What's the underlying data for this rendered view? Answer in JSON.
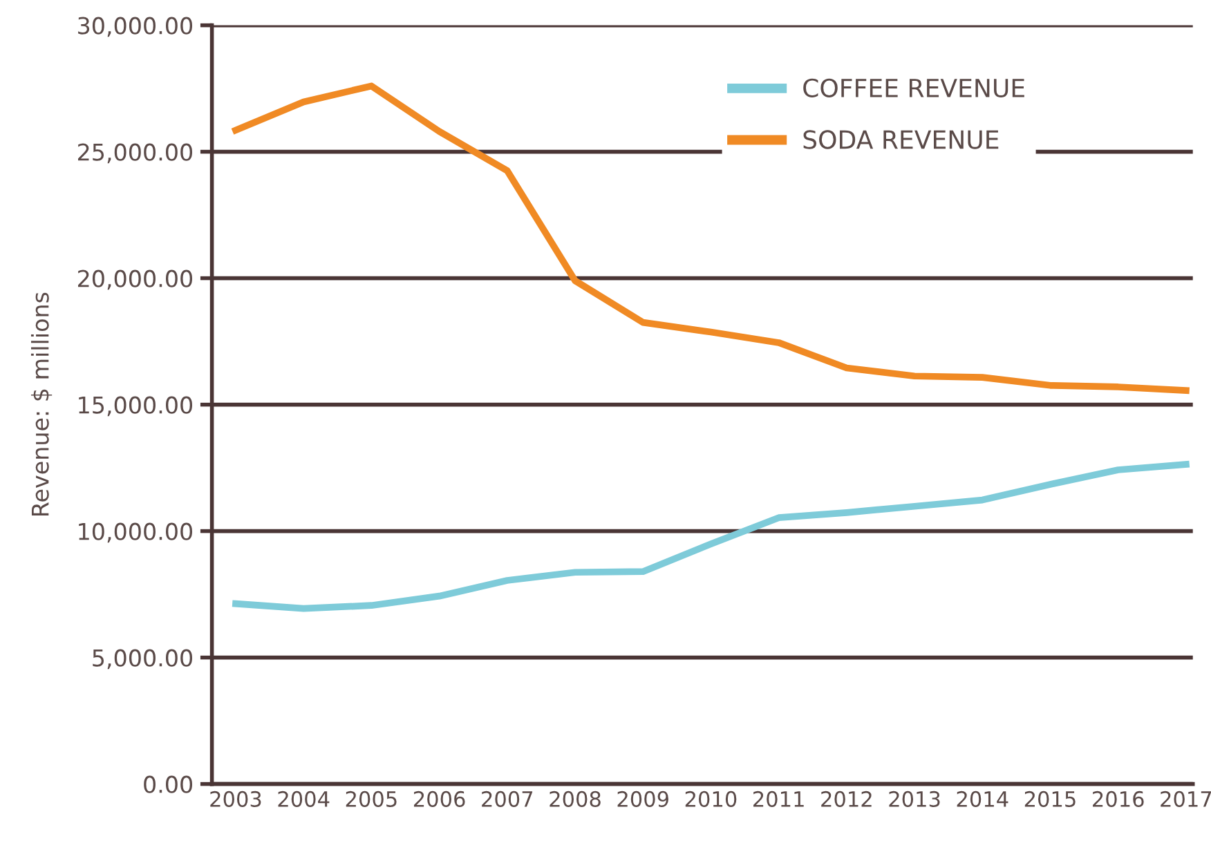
{
  "chart_data": {
    "type": "line",
    "ylabel": "Revenue: $ millions",
    "categories": [
      "2003",
      "2004",
      "2005",
      "2006",
      "2007",
      "2008",
      "2009",
      "2010",
      "2011",
      "2012",
      "2013",
      "2014",
      "2015",
      "2016",
      "2017"
    ],
    "series": [
      {
        "name": "COFFEE REVENUE",
        "color": "#7ecbd9",
        "values": [
          7130,
          6940,
          7060,
          7430,
          8050,
          8370,
          8400,
          9490,
          10530,
          10730,
          10980,
          11230,
          11850,
          12420,
          12640
        ]
      },
      {
        "name": "SODA REVENUE",
        "color": "#f08a24",
        "values": [
          25850,
          26970,
          27600,
          25800,
          24250,
          19900,
          18250,
          17870,
          17450,
          16450,
          16130,
          16080,
          15760,
          15700,
          15560
        ]
      }
    ],
    "ylim": [
      0,
      30000
    ],
    "yticks": [
      {
        "value": 0,
        "label": "0.00"
      },
      {
        "value": 5000,
        "label": "5,000.00"
      },
      {
        "value": 10000,
        "label": "10,000.00"
      },
      {
        "value": 15000,
        "label": "15,000.00"
      },
      {
        "value": 20000,
        "label": "20,000.00"
      },
      {
        "value": 25000,
        "label": "25,000.00"
      },
      {
        "value": 30000,
        "label": "30,000.00"
      }
    ],
    "grid": "y",
    "legend": "top",
    "marker": "none",
    "line_style": "solid"
  }
}
